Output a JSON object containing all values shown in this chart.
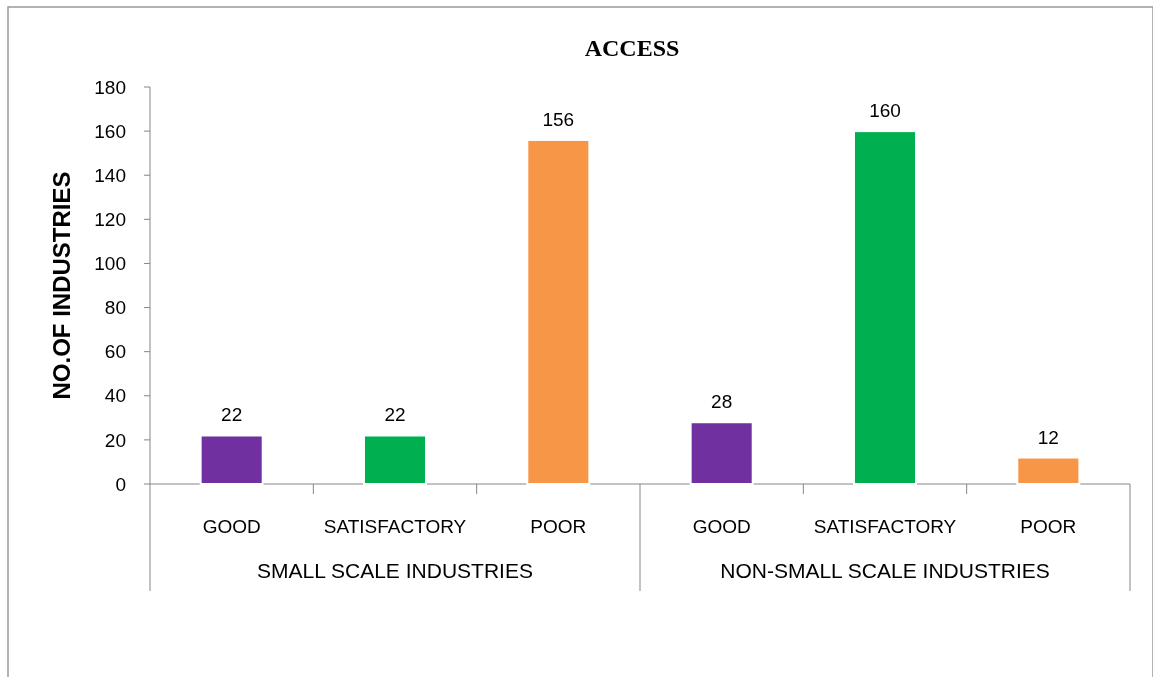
{
  "chart_data": {
    "type": "bar",
    "title": "ACCESS",
    "ylabel": "NO.OF INDUSTRIES",
    "categories": [
      "GOOD",
      "SATISFACTORY",
      "POOR",
      "GOOD",
      "SATISFACTORY",
      "POOR"
    ],
    "values": [
      22,
      22,
      156,
      28,
      160,
      12
    ],
    "colors": [
      "#7030a0",
      "#00b050",
      "#f79646",
      "#7030a0",
      "#00b050",
      "#f79646"
    ],
    "annotations": [
      "SMALL SCALE INDUSTRIES",
      "NON-SMALL SCALE INDUSTRIES"
    ],
    "ylim": [
      0,
      180
    ],
    "yticks": [
      0,
      20,
      40,
      60,
      80,
      100,
      120,
      140,
      160,
      180
    ],
    "data_labels": true
  }
}
